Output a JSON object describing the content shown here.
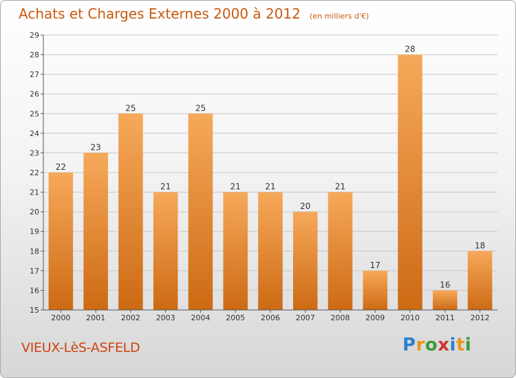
{
  "header": {
    "title": "Achats et Charges Externes 2000 à 2012",
    "subtitle": "(en milliers d'€)"
  },
  "footer": {
    "commune": "VIEUX-LèS-ASFELD",
    "logo_letters": [
      "P",
      "r",
      "o",
      "x",
      "i",
      "t",
      "i"
    ]
  },
  "colors": {
    "bar_light": "#f6a95a",
    "bar_dark": "#cd6a14",
    "title": "#c85a0e",
    "grid": "#c8c8c8"
  },
  "chart_data": {
    "type": "bar",
    "title": "Achats et Charges Externes 2000 à 2012",
    "subtitle": "(en milliers d'€)",
    "categories": [
      "2000",
      "2001",
      "2002",
      "2003",
      "2004",
      "2005",
      "2006",
      "2007",
      "2008",
      "2009",
      "2010",
      "2011",
      "2012"
    ],
    "values": [
      22,
      23,
      25,
      21,
      25,
      21,
      21,
      20,
      21,
      17,
      28,
      16,
      18
    ],
    "ylim": [
      15,
      29
    ],
    "yticks": [
      15,
      16,
      17,
      18,
      19,
      20,
      21,
      22,
      23,
      24,
      25,
      26,
      27,
      28,
      29
    ],
    "grid": true,
    "data_labels": true
  }
}
